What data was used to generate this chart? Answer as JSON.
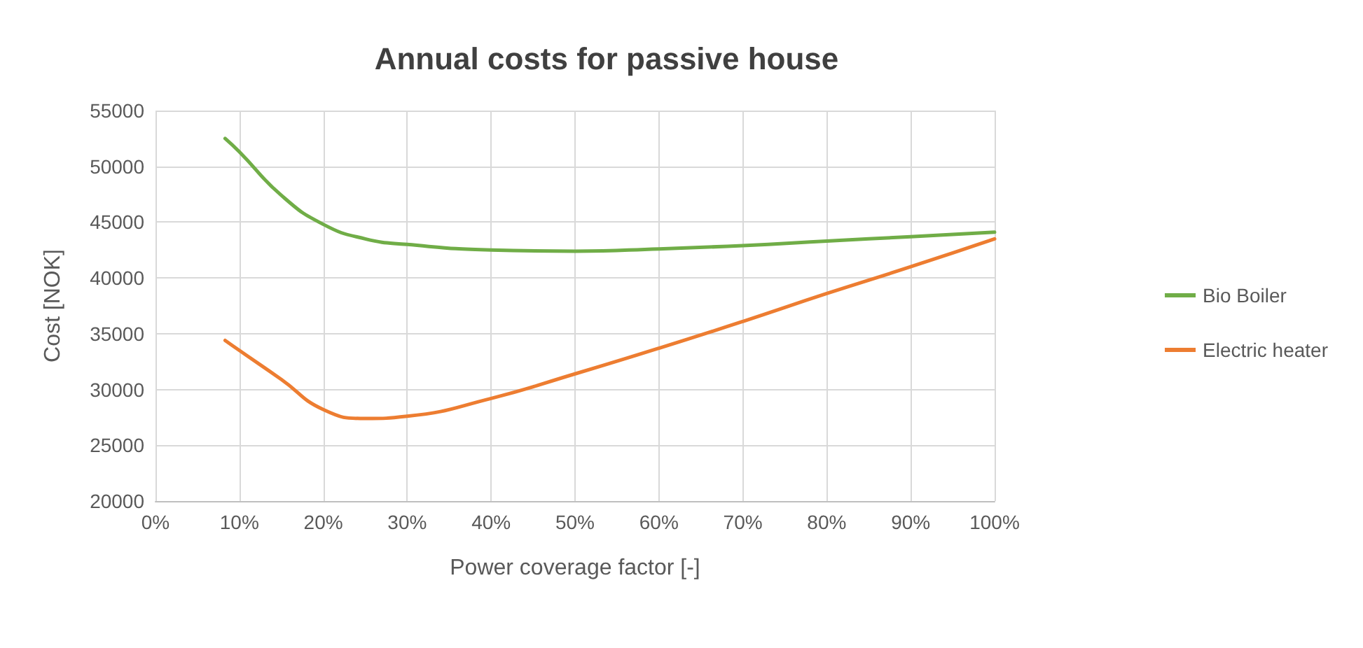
{
  "chart_data": {
    "type": "line",
    "title": "Annual costs for passive house",
    "xlabel": "Power coverage factor [-]",
    "ylabel": "Cost [NOK]",
    "xlim": [
      0,
      100
    ],
    "xticks": [
      {
        "value": 0,
        "label": "0%"
      },
      {
        "value": 10,
        "label": "10%"
      },
      {
        "value": 20,
        "label": "20%"
      },
      {
        "value": 30,
        "label": "30%"
      },
      {
        "value": 40,
        "label": "40%"
      },
      {
        "value": 50,
        "label": "50%"
      },
      {
        "value": 60,
        "label": "60%"
      },
      {
        "value": 70,
        "label": "70%"
      },
      {
        "value": 80,
        "label": "80%"
      },
      {
        "value": 90,
        "label": "90%"
      },
      {
        "value": 100,
        "label": "100%"
      }
    ],
    "ylim": [
      20000,
      55000
    ],
    "yticks": [
      20000,
      25000,
      30000,
      35000,
      40000,
      45000,
      50000,
      55000
    ],
    "x": [
      8.3,
      10,
      15,
      20,
      25,
      30,
      40,
      50,
      60,
      70,
      80,
      90,
      100
    ],
    "series": [
      {
        "name": "Bio Boiler",
        "color": "#70ad47",
        "values": [
          52500,
          51300,
          47400,
          44800,
          43500,
          43000,
          42500,
          42400,
          42600,
          42900,
          43300,
          43700,
          44100
        ]
      },
      {
        "name": "Electric heater",
        "color": "#ed7d31",
        "values": [
          34400,
          33500,
          30900,
          28200,
          27400,
          27600,
          29200,
          31400,
          33700,
          36100,
          38600,
          41000,
          43500
        ]
      }
    ],
    "grid": true,
    "legend": "right",
    "marker": "none",
    "line_style": "solid"
  }
}
